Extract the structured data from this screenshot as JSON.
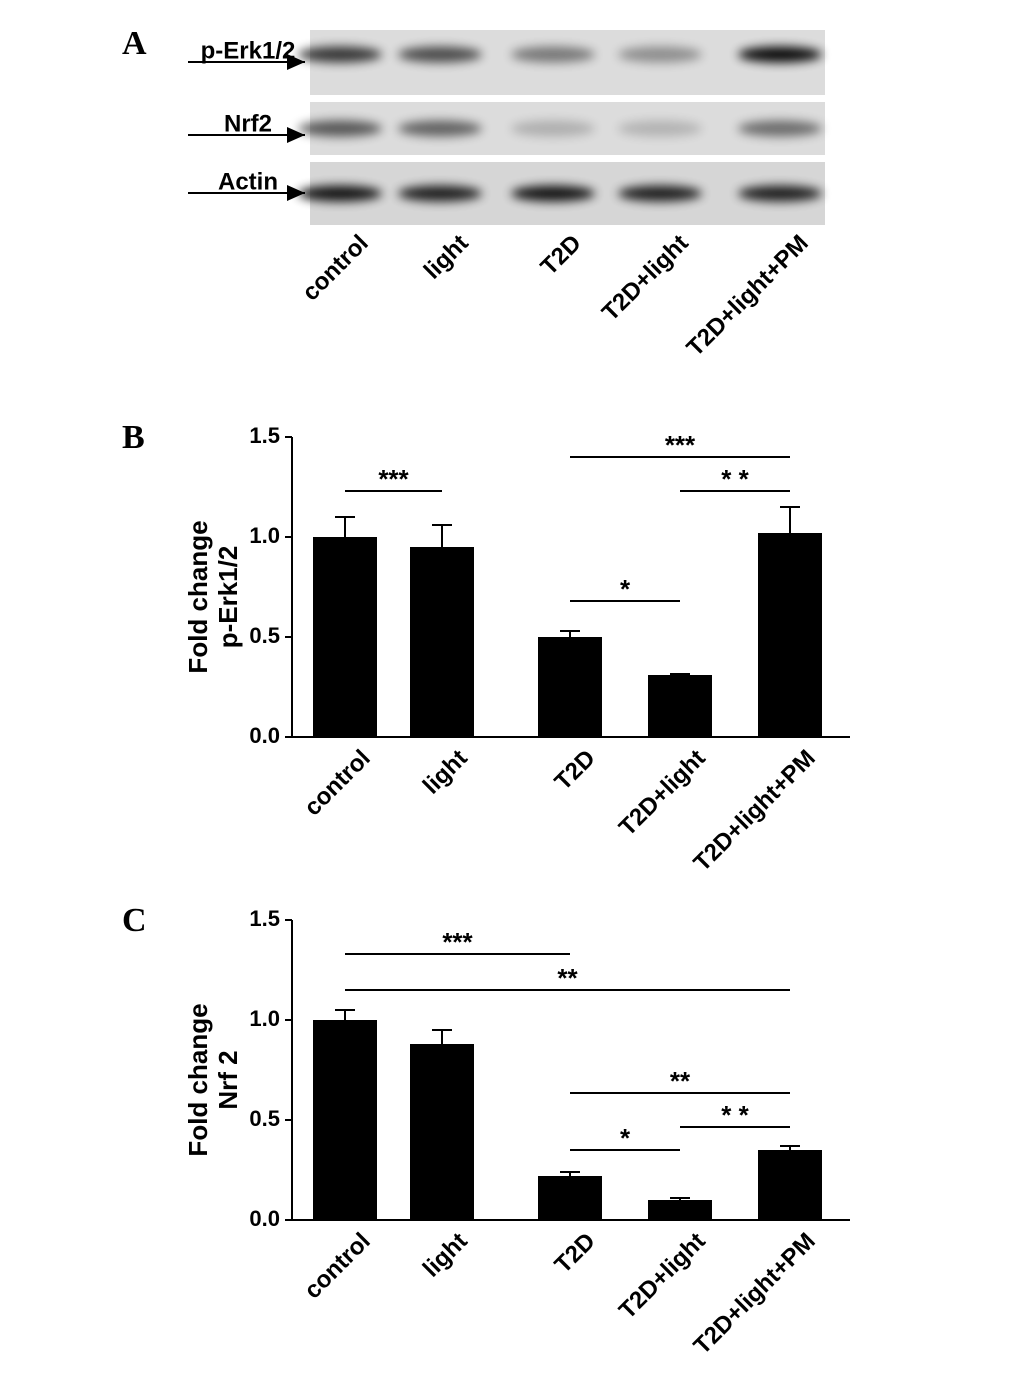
{
  "blot": {
    "panel": "A",
    "rows": [
      "p-Erk1/2",
      "Nrf2",
      "Actin"
    ],
    "lanes": [
      "control",
      "light",
      "T2D",
      "T2D+light",
      "T2D+light+PM"
    ]
  },
  "chart_data": [
    {
      "type": "bar",
      "panel": "B",
      "ylabel": [
        "Fold change",
        "p-Erk1/2"
      ],
      "color": "#000000",
      "categories": [
        "control",
        "light",
        "T2D",
        "T2D+light",
        "T2D+light+PM"
      ],
      "values": [
        1.0,
        0.95,
        0.5,
        0.31,
        1.02
      ],
      "errors": [
        0.1,
        0.11,
        0.03,
        0.005,
        0.13
      ],
      "ylim": [
        0,
        1.5
      ],
      "yticks": [
        {
          "value": 0,
          "label": "0.0"
        },
        {
          "value": 0.5,
          "label": "0.5"
        },
        {
          "value": 1,
          "label": "1.0"
        },
        {
          "value": 1.5,
          "label": "1.5"
        }
      ],
      "annotations": [
        {
          "text": "***",
          "from": "control",
          "to": "light",
          "y": 1.23
        },
        {
          "text": "***",
          "from": "T2D",
          "to": "T2D+light+PM",
          "y": 1.4
        },
        {
          "text": "* *",
          "from": "T2D+light",
          "to": "T2D+light+PM",
          "y": 1.23
        },
        {
          "text": "*",
          "from": "T2D",
          "to": "T2D+light",
          "y": 0.68
        }
      ]
    },
    {
      "type": "bar",
      "panel": "C",
      "ylabel": [
        "Fold change",
        "Nrf 2"
      ],
      "color": "#000000",
      "categories": [
        "control",
        "light",
        "T2D",
        "T2D+light",
        "T2D+light+PM"
      ],
      "values": [
        1.0,
        0.88,
        0.22,
        0.1,
        0.35
      ],
      "errors": [
        0.05,
        0.07,
        0.02,
        0.01,
        0.02
      ],
      "ylim": [
        0,
        1.5
      ],
      "yticks": [
        {
          "value": 0,
          "label": "0.0"
        },
        {
          "value": 0.5,
          "label": "0.5"
        },
        {
          "value": 1,
          "label": "1.0"
        },
        {
          "value": 1.5,
          "label": "1.5"
        }
      ],
      "annotations": [
        {
          "text": "***",
          "from": "control",
          "to": "T2D",
          "y": 1.33
        },
        {
          "text": "**",
          "from": "control",
          "to": "T2D+light+PM",
          "y": 1.15
        },
        {
          "text": "**",
          "from": "T2D",
          "to": "T2D+light+PM",
          "y": 0.635
        },
        {
          "text": "* *",
          "from": "T2D+light",
          "to": "T2D+light+PM",
          "y": 0.465
        },
        {
          "text": "*",
          "from": "T2D",
          "to": "T2D+light",
          "y": 0.35
        }
      ]
    }
  ]
}
